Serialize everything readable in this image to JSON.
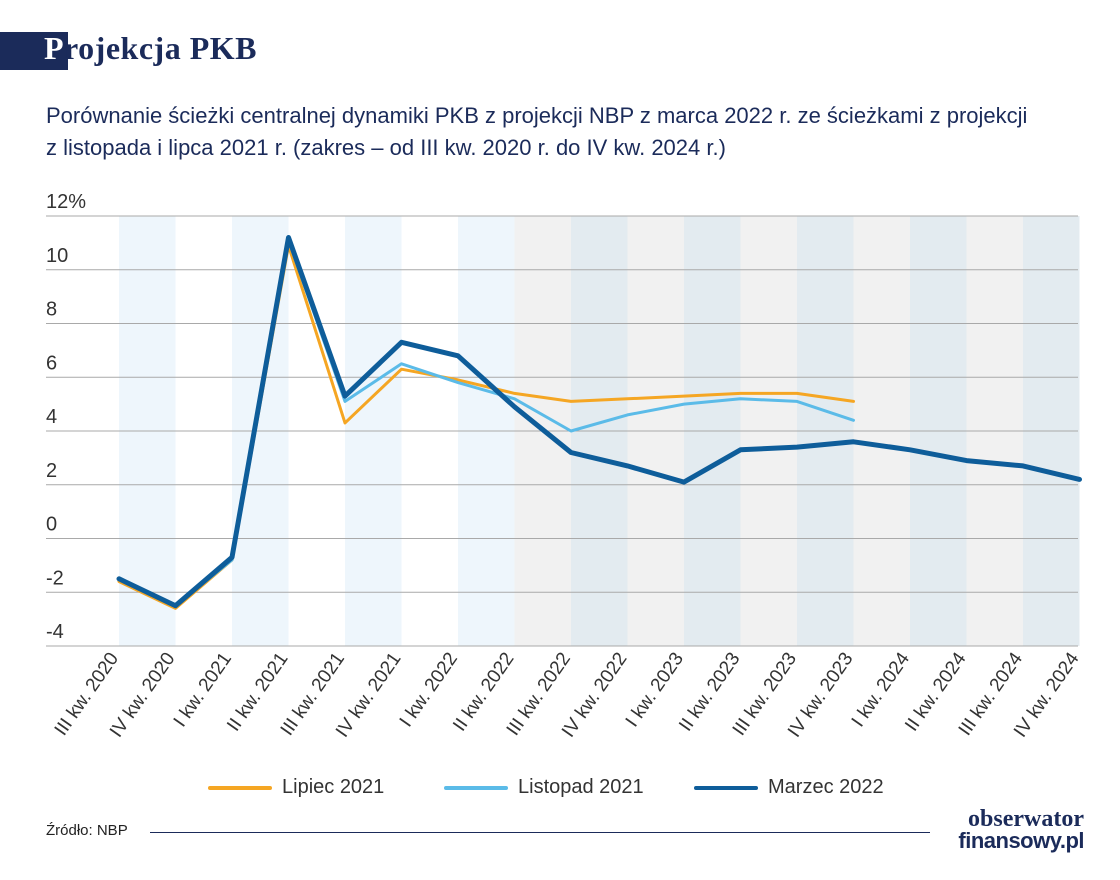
{
  "header": {
    "title_first": "P",
    "title_rest": "rojekcja PKB",
    "subtitle_line1": "Porównanie ścieżki centralnej dynamiki PKB z projekcji NBP z marca 2022 r. ze ścieżkami z projekcji",
    "subtitle_line2": "z listopada i lipca 2021 r. (zakres – od III kw. 2020 r. do IV kw. 2024 r.)"
  },
  "footer": {
    "source": "Źródło: NBP",
    "logo_line1": "obserwator",
    "logo_line2": "finansowy.pl"
  },
  "colors": {
    "lipiec": "#f5a623",
    "listopad": "#5bbbe8",
    "marzec": "#0e5d9a",
    "band_light": "#eef6fc",
    "band_forecast": "#e3ebf0",
    "forecast_bg": "#f1f1f1",
    "grid": "#a9a9a9"
  },
  "chart_data": {
    "type": "line",
    "categories": [
      "III kw. 2020",
      "IV kw. 2020",
      "I kw. 2021",
      "II kw. 2021",
      "III kw. 2021",
      "IV kw. 2021",
      "I kw. 2022",
      "II kw. 2022",
      "III kw. 2022",
      "IV kw. 2022",
      "I kw. 2023",
      "II kw. 2023",
      "III kw. 2023",
      "IV kw. 2023",
      "I kw. 2024",
      "II kw. 2024",
      "III kw. 2024",
      "IV kw. 2024"
    ],
    "series": [
      {
        "name": "Lipiec 2021",
        "color_key": "lipiec",
        "values": [
          -1.6,
          -2.6,
          -0.8,
          10.9,
          4.3,
          6.3,
          5.9,
          5.4,
          5.1,
          5.2,
          5.3,
          5.4,
          5.4,
          5.1,
          null,
          null,
          null,
          null
        ]
      },
      {
        "name": "Listopad 2021",
        "color_key": "listopad",
        "values": [
          -1.5,
          -2.5,
          -0.8,
          11.1,
          5.1,
          6.5,
          5.8,
          5.2,
          4.0,
          4.6,
          5.0,
          5.2,
          5.1,
          4.4,
          null,
          null,
          null,
          null
        ]
      },
      {
        "name": "Marzec 2022",
        "color_key": "marzec",
        "values": [
          -1.5,
          -2.5,
          -0.7,
          11.2,
          5.3,
          7.3,
          6.8,
          4.9,
          3.2,
          2.7,
          2.1,
          3.3,
          3.4,
          3.6,
          3.3,
          2.9,
          2.7,
          2.2
        ]
      }
    ],
    "yticks": [
      "12%",
      "10",
      "8",
      "6",
      "4",
      "2",
      "0",
      "-2",
      "-4"
    ],
    "ylim": [
      -4,
      12
    ],
    "forecast_start_category": "II kw. 2022",
    "grid": true,
    "legend_position": "bottom"
  }
}
